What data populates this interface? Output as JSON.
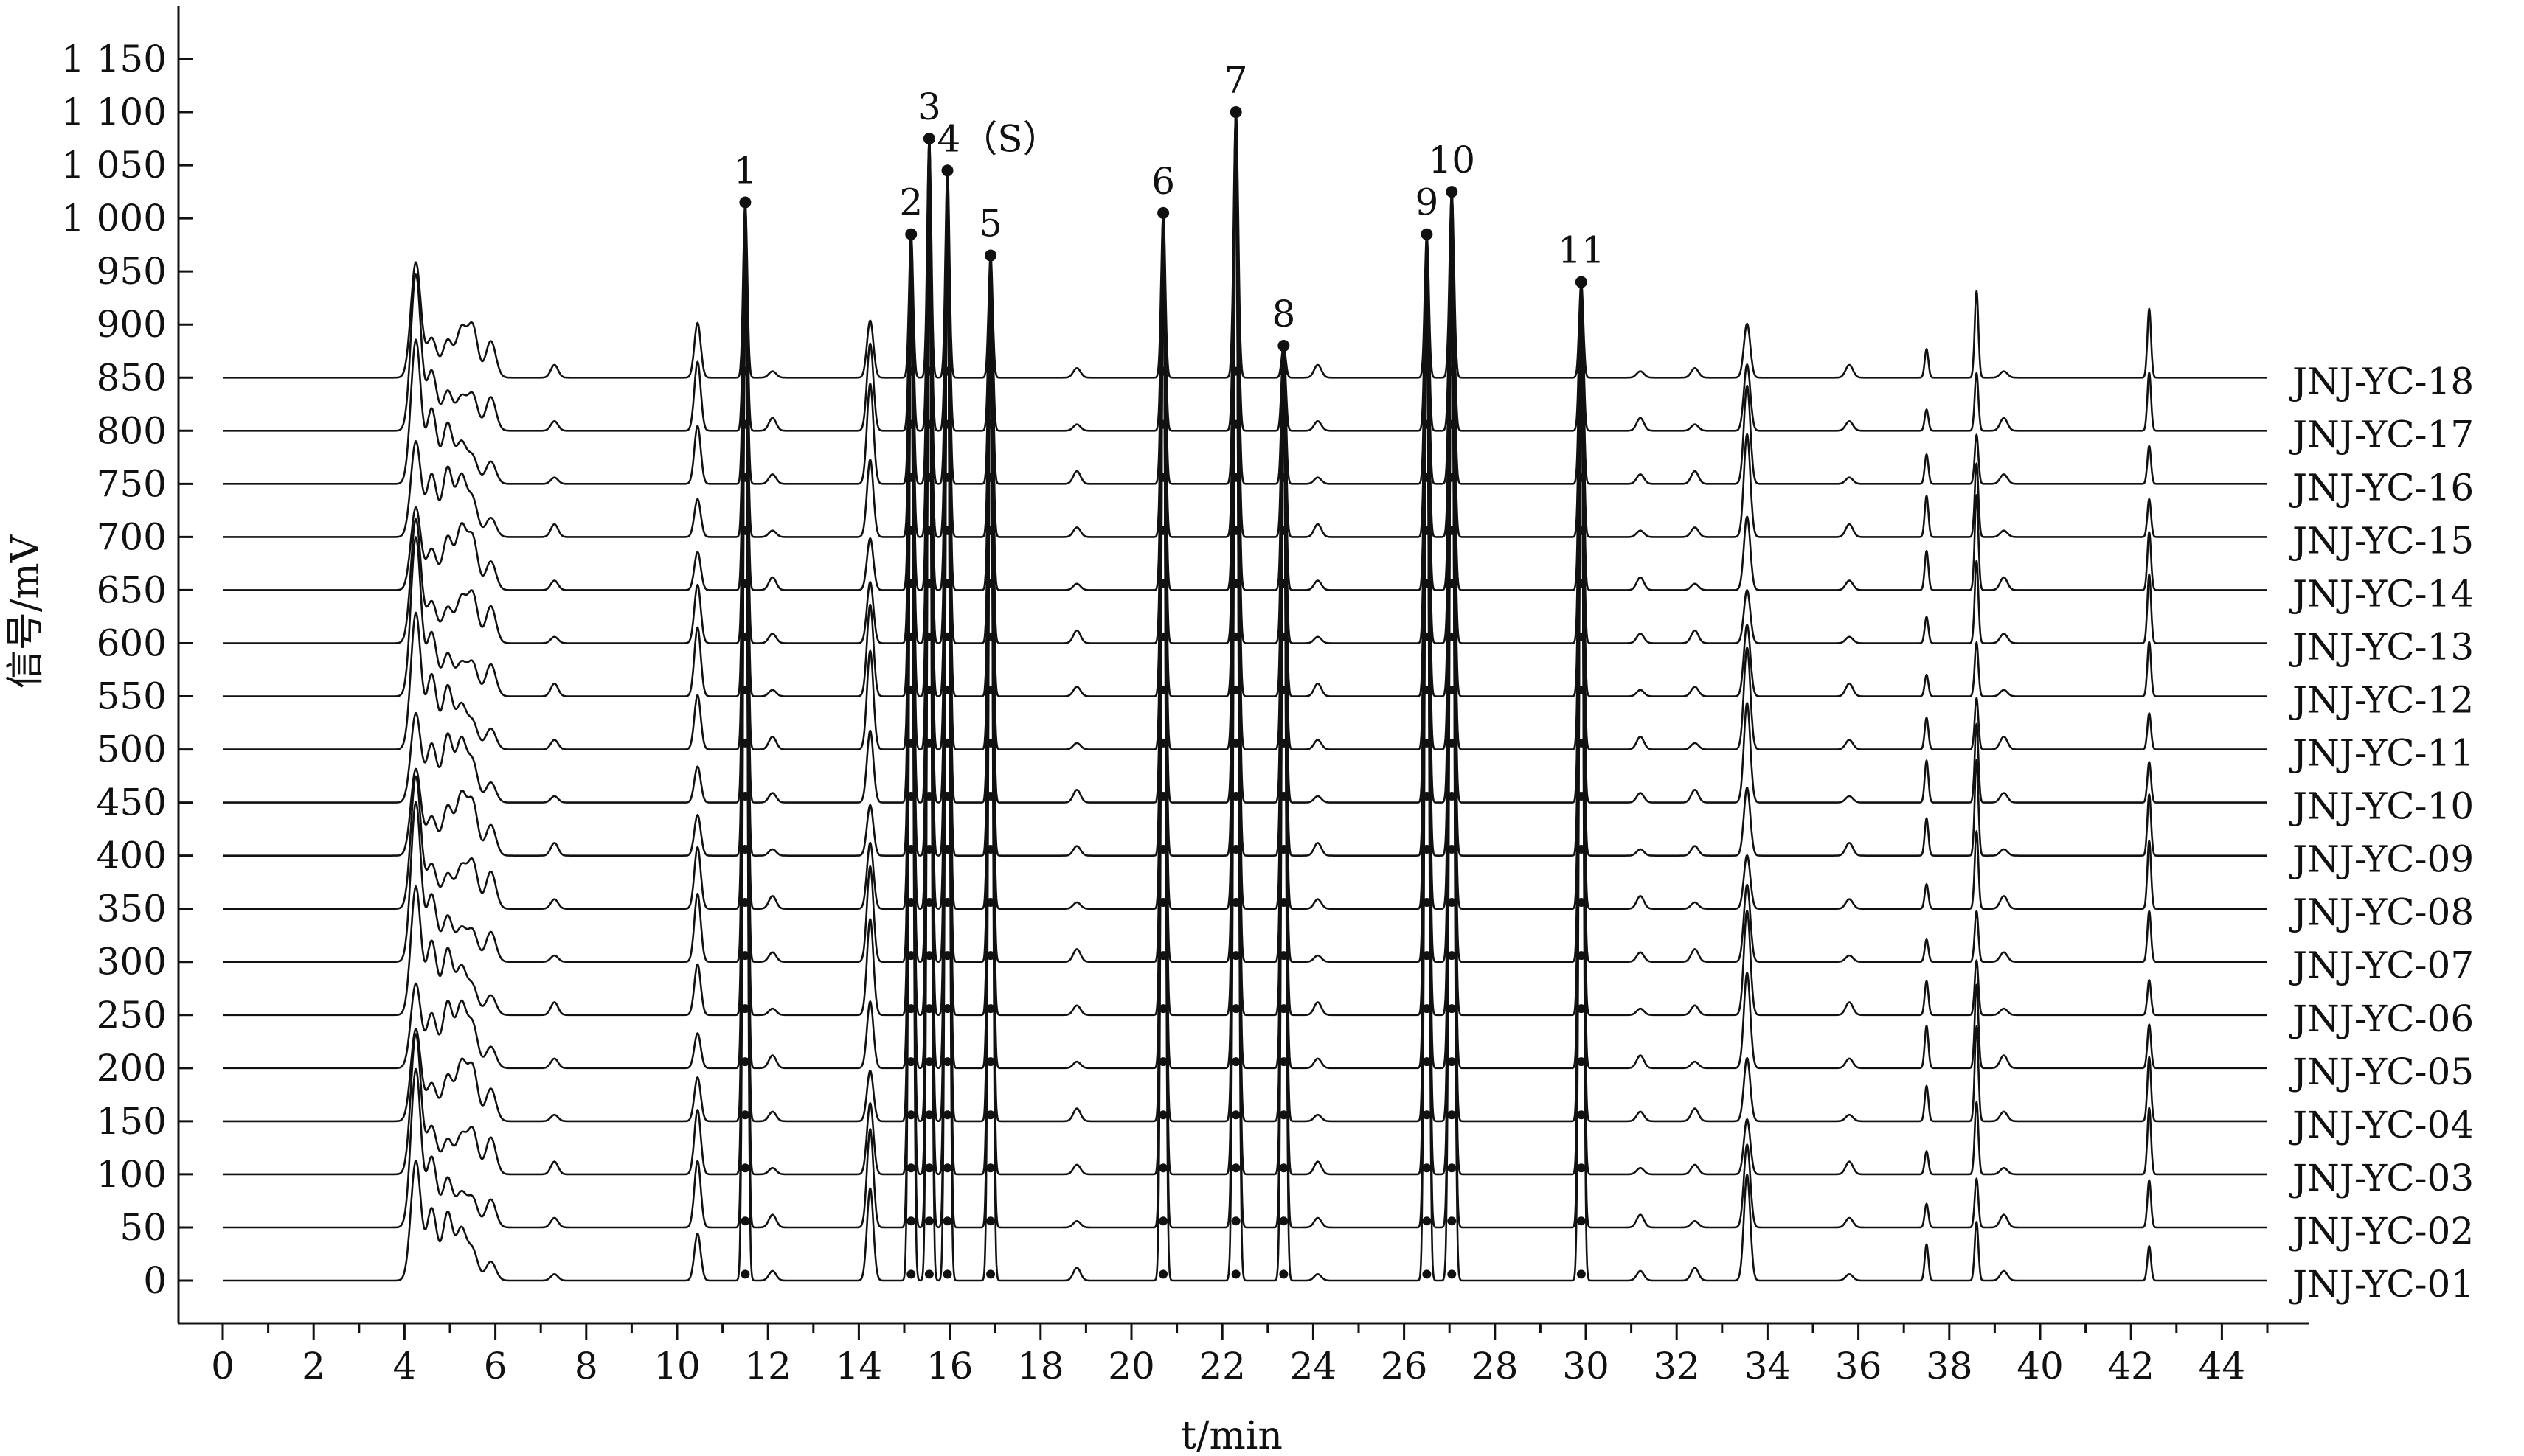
{
  "chart_data": {
    "type": "line",
    "xlabel": "t/min",
    "ylabel": "信号/mV",
    "xlim": [
      0,
      45
    ],
    "ylim": [
      -20,
      1200
    ],
    "x_ticks": [
      0,
      2,
      4,
      6,
      8,
      10,
      12,
      14,
      16,
      18,
      20,
      22,
      24,
      26,
      28,
      30,
      32,
      34,
      36,
      38,
      40,
      42,
      44
    ],
    "y_ticks": [
      0,
      50,
      100,
      150,
      200,
      250,
      300,
      350,
      400,
      450,
      500,
      550,
      600,
      650,
      700,
      750,
      800,
      850,
      900,
      950,
      1000,
      1050,
      1100,
      1150
    ],
    "y_tick_labels": [
      "0",
      "50",
      "100",
      "150",
      "200",
      "250",
      "300",
      "350",
      "400",
      "450",
      "500",
      "550",
      "600",
      "650",
      "700",
      "750",
      "800",
      "850",
      "900",
      "950",
      "1 000",
      "1 050",
      "1 100",
      "1 150"
    ],
    "series_offset_step": 50,
    "series": [
      {
        "name": "JNJ-YC-01",
        "baseline": 0
      },
      {
        "name": "JNJ-YC-02",
        "baseline": 50
      },
      {
        "name": "JNJ-YC-03",
        "baseline": 100
      },
      {
        "name": "JNJ-YC-04",
        "baseline": 150
      },
      {
        "name": "JNJ-YC-05",
        "baseline": 200
      },
      {
        "name": "JNJ-YC-06",
        "baseline": 250
      },
      {
        "name": "JNJ-YC-07",
        "baseline": 300
      },
      {
        "name": "JNJ-YC-08",
        "baseline": 350
      },
      {
        "name": "JNJ-YC-09",
        "baseline": 400
      },
      {
        "name": "JNJ-YC-10",
        "baseline": 450
      },
      {
        "name": "JNJ-YC-11",
        "baseline": 500
      },
      {
        "name": "JNJ-YC-12",
        "baseline": 550
      },
      {
        "name": "JNJ-YC-13",
        "baseline": 600
      },
      {
        "name": "JNJ-YC-14",
        "baseline": 650
      },
      {
        "name": "JNJ-YC-15",
        "baseline": 700
      },
      {
        "name": "JNJ-YC-16",
        "baseline": 750
      },
      {
        "name": "JNJ-YC-17",
        "baseline": 800
      },
      {
        "name": "JNJ-YC-18",
        "baseline": 850
      }
    ],
    "common_peaks": [
      {
        "label": "1",
        "t": 11.5,
        "apex": 1015
      },
      {
        "label": "2",
        "t": 15.15,
        "apex": 985
      },
      {
        "label": "3",
        "t": 15.55,
        "apex": 1075
      },
      {
        "label": "4（S）",
        "t": 15.95,
        "apex": 1045
      },
      {
        "label": "5",
        "t": 16.9,
        "apex": 965
      },
      {
        "label": "6",
        "t": 20.7,
        "apex": 1005
      },
      {
        "label": "7",
        "t": 22.3,
        "apex": 1100
      },
      {
        "label": "8",
        "t": 23.35,
        "apex": 880
      },
      {
        "label": "9",
        "t": 26.5,
        "apex": 985
      },
      {
        "label": "10",
        "t": 27.05,
        "apex": 1025
      },
      {
        "label": "11",
        "t": 29.9,
        "apex": 940
      }
    ],
    "other_peaks": [
      {
        "t": 4.25,
        "height": 150
      },
      {
        "t": 4.6,
        "height": 70
      },
      {
        "t": 4.95,
        "height": 65
      },
      {
        "t": 5.25,
        "height": 60
      },
      {
        "t": 5.5,
        "height": 50
      },
      {
        "t": 5.9,
        "height": 35
      },
      {
        "t": 10.45,
        "height": 65
      },
      {
        "t": 14.25,
        "height": 95
      },
      {
        "t": 33.55,
        "height": 100
      },
      {
        "t": 37.5,
        "height": 40
      },
      {
        "t": 38.6,
        "height": 90
      },
      {
        "t": 42.4,
        "height": 65
      }
    ],
    "grid": false
  }
}
